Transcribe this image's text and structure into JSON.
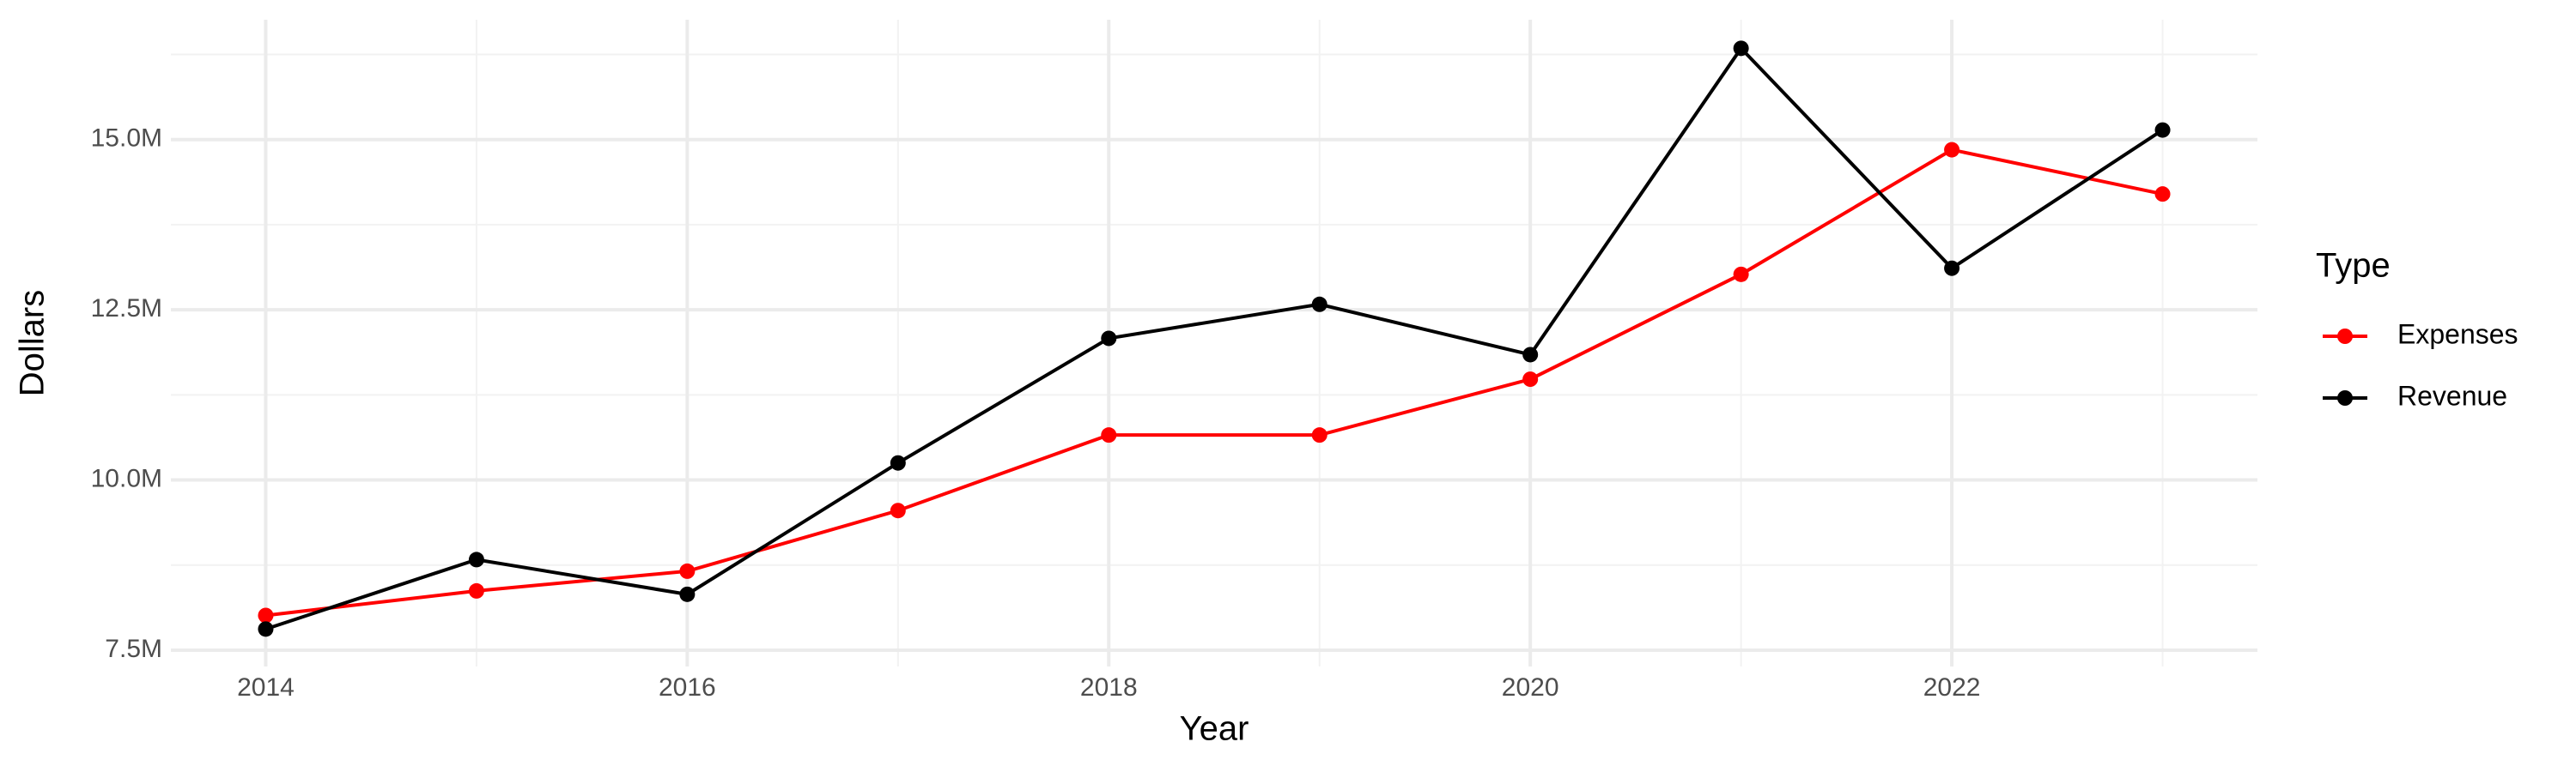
{
  "chart_data": {
    "type": "line",
    "x_label": "Year",
    "y_label": "Dollars",
    "legend_title": "Type",
    "legend": "right",
    "x": [
      2014,
      2015,
      2016,
      2017,
      2018,
      2019,
      2020,
      2021,
      2022,
      2023
    ],
    "series": [
      {
        "name": "Expenses",
        "color": "#ff0000",
        "values": [
          8010000,
          8370000,
          8660000,
          9550000,
          10660000,
          10660000,
          11480000,
          13020000,
          14850000,
          14200000
        ]
      },
      {
        "name": "Revenue",
        "color": "#000000",
        "values": [
          7810000,
          8830000,
          8320000,
          10250000,
          12080000,
          12580000,
          11840000,
          16340000,
          13110000,
          15140000
        ]
      }
    ],
    "xlim": [
      2013.55,
      2023.45
    ],
    "xticks": [
      2014,
      2016,
      2018,
      2020,
      2022
    ],
    "x_minor_ticks": [
      2015,
      2017,
      2019,
      2021,
      2023
    ],
    "ylim": [
      7260000,
      16760000
    ],
    "yticks": [
      {
        "value": 7500000,
        "label": "7.5M"
      },
      {
        "value": 10000000,
        "label": "10.0M"
      },
      {
        "value": 12500000,
        "label": "12.5M"
      },
      {
        "value": 15000000,
        "label": "15.0M"
      }
    ],
    "y_minor_ticks": [
      8750000,
      11250000,
      13750000,
      16250000
    ],
    "grid": true
  }
}
